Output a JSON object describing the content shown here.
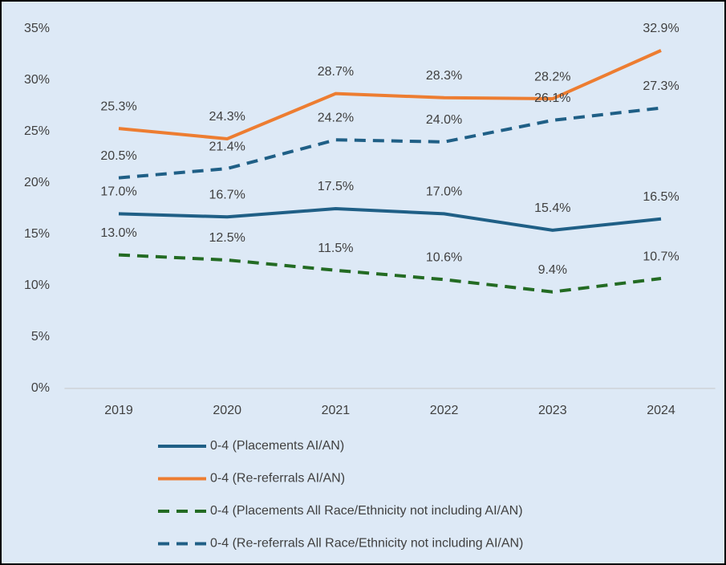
{
  "chart_data": {
    "type": "line",
    "categories": [
      "2019",
      "2020",
      "2021",
      "2022",
      "2023",
      "2024"
    ],
    "series": [
      {
        "name": "0-4 (Placements AI/AN)",
        "color": "#1f5f86",
        "dashed": false,
        "values": [
          17.0,
          16.7,
          17.5,
          17.0,
          15.4,
          16.5
        ],
        "value_labels": [
          "17.0%",
          "16.7%",
          "17.5%",
          "17.0%",
          "15.4%",
          "16.5%"
        ]
      },
      {
        "name": "0-4 (Re-referrals AI/AN)",
        "color": "#ed7d31",
        "dashed": false,
        "values": [
          25.3,
          24.3,
          28.7,
          28.3,
          28.2,
          32.9
        ],
        "value_labels": [
          "25.3%",
          "24.3%",
          "28.7%",
          "28.3%",
          "28.2%",
          "32.9%"
        ]
      },
      {
        "name": "0-4 (Placements All Race/Ethnicity not including AI/AN)",
        "color": "#236b23",
        "dashed": true,
        "values": [
          13.0,
          12.5,
          11.5,
          10.6,
          9.4,
          10.7
        ],
        "value_labels": [
          "13.0%",
          "12.5%",
          "11.5%",
          "10.6%",
          "9.4%",
          "10.7%"
        ]
      },
      {
        "name": "0-4 (Re-referrals All Race/Ethnicity not including AI/AN)",
        "color": "#1f5f86",
        "dashed": true,
        "values": [
          20.5,
          21.4,
          24.2,
          24.0,
          26.1,
          27.3
        ],
        "value_labels": [
          "20.5%",
          "21.4%",
          "24.2%",
          "24.0%",
          "26.1%",
          "27.3%"
        ]
      }
    ],
    "ylim": [
      0,
      35
    ],
    "yticks": [
      {
        "value": 0,
        "label": "0%"
      },
      {
        "value": 5,
        "label": "5%"
      },
      {
        "value": 10,
        "label": "10%"
      },
      {
        "value": 15,
        "label": "15%"
      },
      {
        "value": 20,
        "label": "20%"
      },
      {
        "value": 25,
        "label": "25%"
      },
      {
        "value": 30,
        "label": "30%"
      },
      {
        "value": 35,
        "label": "35%"
      }
    ],
    "grid": false,
    "legend": "bottom"
  }
}
